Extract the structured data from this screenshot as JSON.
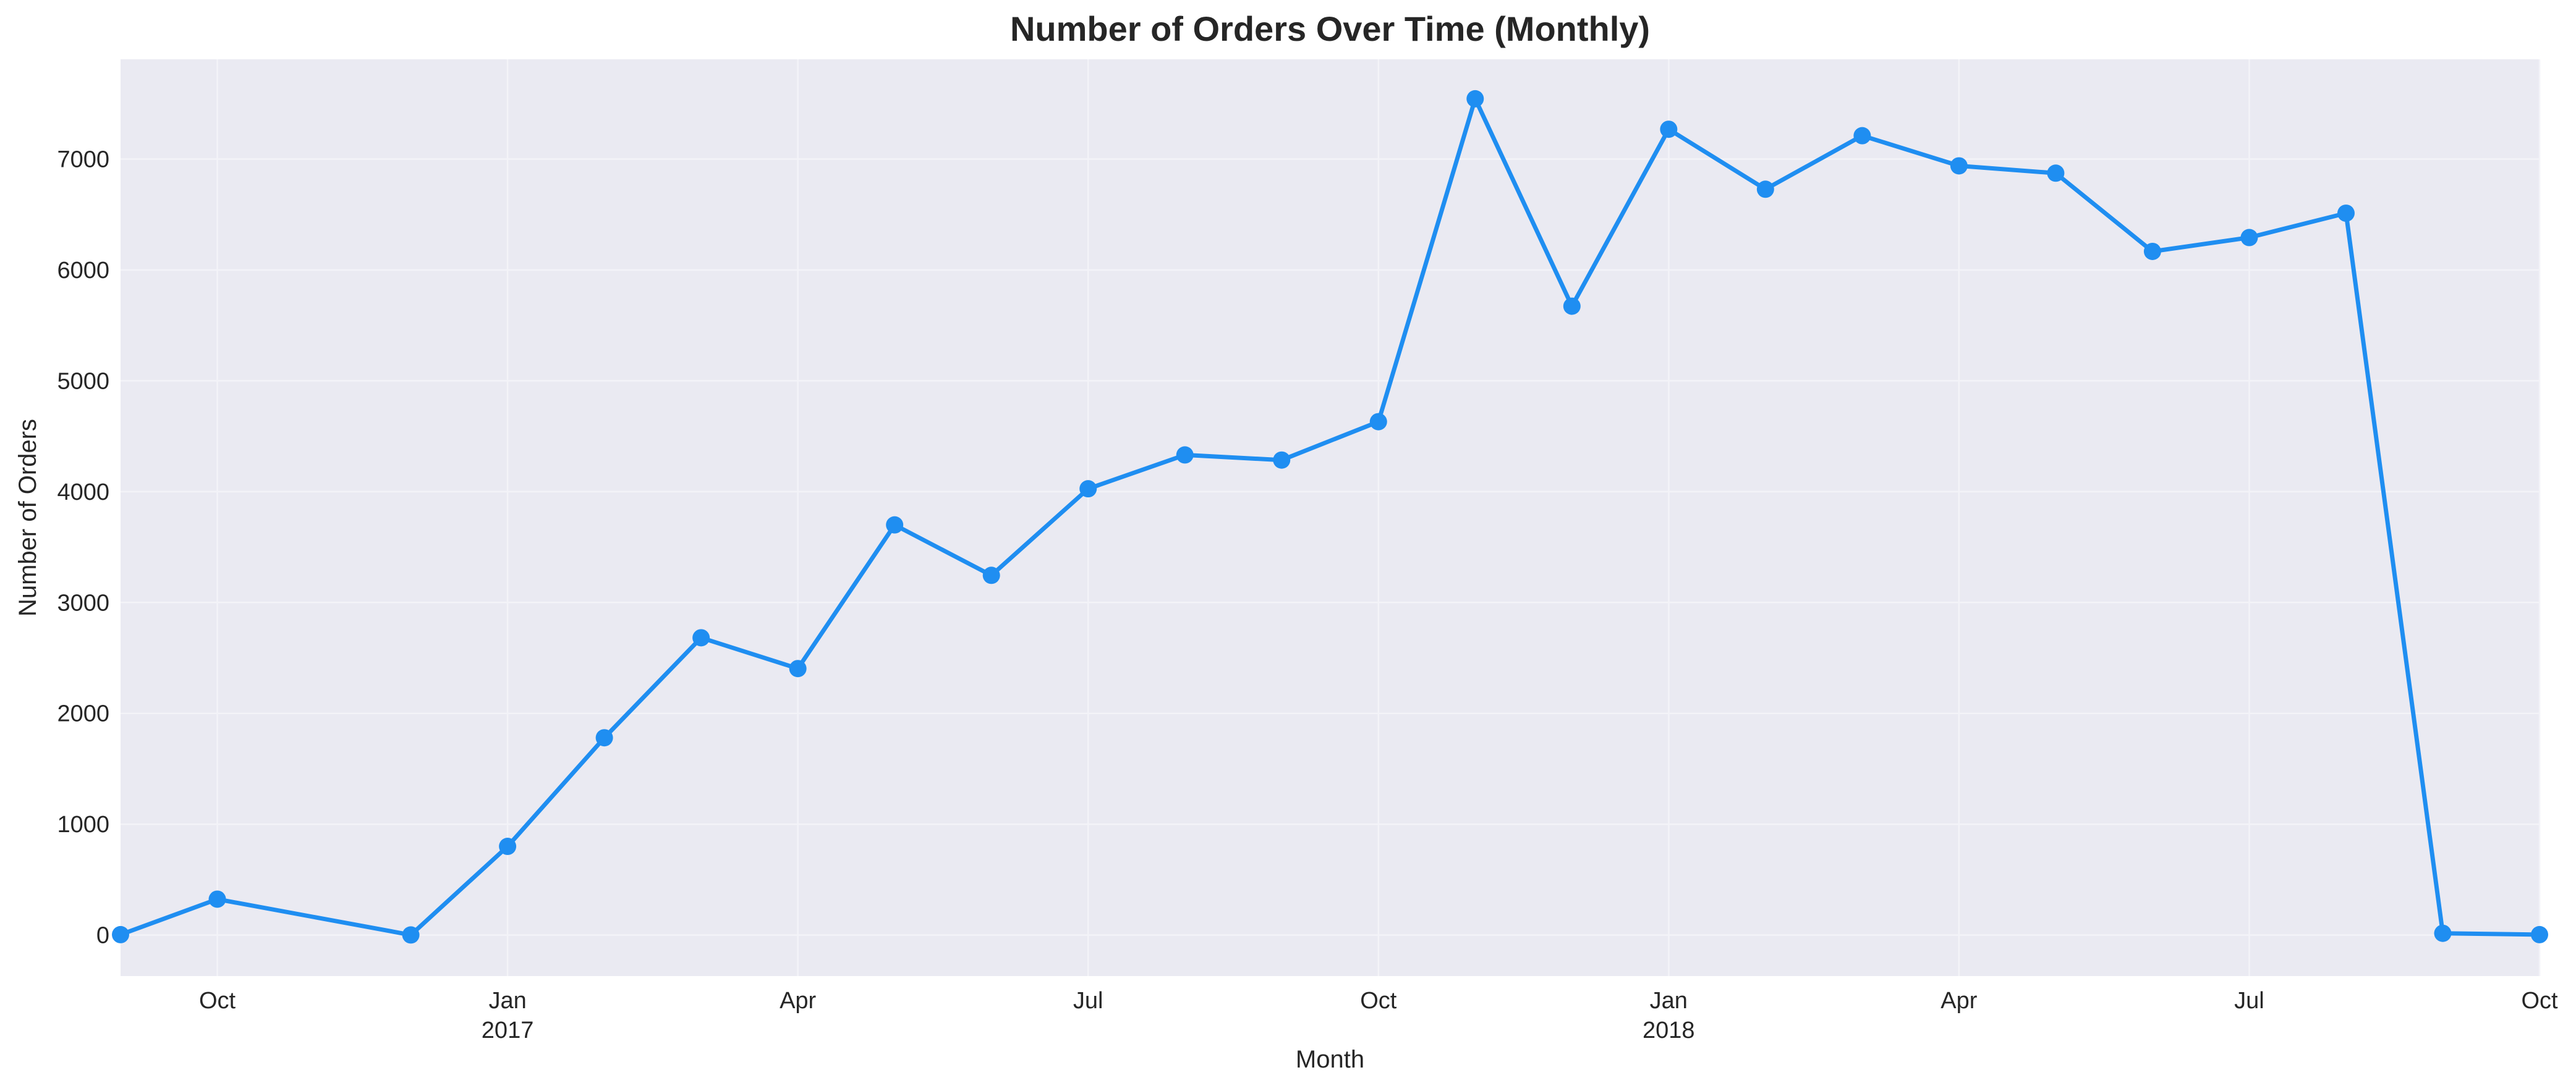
{
  "chart_data": {
    "type": "line",
    "title": "Number of Orders Over Time (Monthly)",
    "xlabel": "Month",
    "ylabel": "Number of Orders",
    "x_axis_type": "date",
    "xlim": [
      "2016-09",
      "2018-10"
    ],
    "ylim": [
      -370,
      7900
    ],
    "grid": true,
    "legend": "none",
    "colors": {
      "line": "#1f8ef1",
      "plot_background": "#eaeaf2",
      "grid": "#f3f3f8",
      "text": "#262626"
    },
    "x_ticks": [
      {
        "date": "2016-10",
        "label": "Oct",
        "sublabel": ""
      },
      {
        "date": "2017-01",
        "label": "Jan",
        "sublabel": "2017"
      },
      {
        "date": "2017-04",
        "label": "Apr",
        "sublabel": ""
      },
      {
        "date": "2017-07",
        "label": "Jul",
        "sublabel": ""
      },
      {
        "date": "2017-10",
        "label": "Oct",
        "sublabel": ""
      },
      {
        "date": "2018-01",
        "label": "Jan",
        "sublabel": "2018"
      },
      {
        "date": "2018-04",
        "label": "Apr",
        "sublabel": ""
      },
      {
        "date": "2018-07",
        "label": "Jul",
        "sublabel": ""
      },
      {
        "date": "2018-10",
        "label": "Oct",
        "sublabel": ""
      }
    ],
    "y_ticks": [
      0,
      1000,
      2000,
      3000,
      4000,
      5000,
      6000,
      7000
    ],
    "series": [
      {
        "x": [
          "2016-09",
          "2016-10",
          "2016-12",
          "2017-01",
          "2017-02",
          "2017-03",
          "2017-04",
          "2017-05",
          "2017-06",
          "2017-07",
          "2017-08",
          "2017-09",
          "2017-10",
          "2017-11",
          "2017-12",
          "2018-01",
          "2018-02",
          "2018-03",
          "2018-04",
          "2018-05",
          "2018-06",
          "2018-07",
          "2018-08",
          "2018-09",
          "2018-10"
        ],
        "values": [
          4,
          324,
          1,
          800,
          1780,
          2682,
          2404,
          3700,
          3245,
          4026,
          4331,
          4285,
          4631,
          7544,
          5673,
          7269,
          6728,
          7211,
          6939,
          6873,
          6167,
          6292,
          6512,
          16,
          4
        ]
      }
    ]
  }
}
